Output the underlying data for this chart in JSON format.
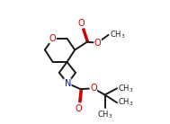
{
  "background": "#ffffff",
  "bond_color": "#1a1a1a",
  "oxygen_color": "#cc0000",
  "nitrogen_color": "#0000cc",
  "lw": 1.4,
  "dbo": 0.012,
  "figsize": [
    1.89,
    1.38
  ],
  "dpi": 100,
  "xlim": [
    0.0,
    1.0
  ],
  "ylim": [
    0.0,
    1.0
  ]
}
